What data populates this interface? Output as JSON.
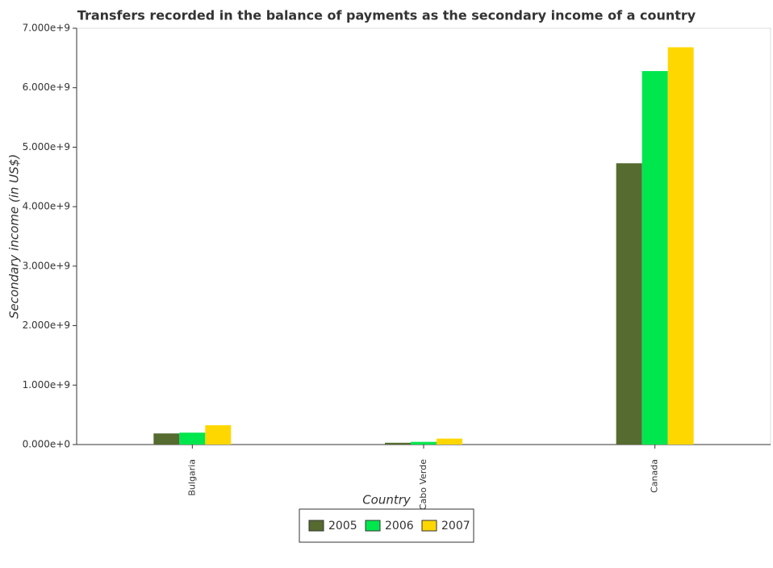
{
  "chart_data": {
    "type": "bar",
    "title": "Transfers recorded in the balance of payments as the secondary income of a country",
    "x_label": "Country",
    "y_label": "Secondary income (in US$)",
    "categories": [
      "Bulgaria",
      "Cabo Verde",
      "Canada"
    ],
    "series": [
      {
        "name": "2005",
        "color": "#556b2f",
        "values": [
          187000000,
          30000000,
          4730000000
        ]
      },
      {
        "name": "2006",
        "color": "#00e64d",
        "values": [
          200000000,
          45000000,
          6280000000
        ]
      },
      {
        "name": "2007",
        "color": "#ffd700",
        "values": [
          325000000,
          100000000,
          6680000000
        ]
      }
    ],
    "ylim": [
      0,
      7000000000
    ],
    "yticks": [
      {
        "value": 0,
        "label": "0.000e+0"
      },
      {
        "value": 1000000000,
        "label": "1.000e+9"
      },
      {
        "value": 2000000000,
        "label": "2.000e+9"
      },
      {
        "value": 3000000000,
        "label": "3.000e+9"
      },
      {
        "value": 4000000000,
        "label": "4.000e+9"
      },
      {
        "value": 5000000000,
        "label": "5.000e+9"
      },
      {
        "value": 6000000000,
        "label": "6.000e+9"
      },
      {
        "value": 7000000000,
        "label": "7.000e+9"
      }
    ],
    "legend": "bottom"
  }
}
